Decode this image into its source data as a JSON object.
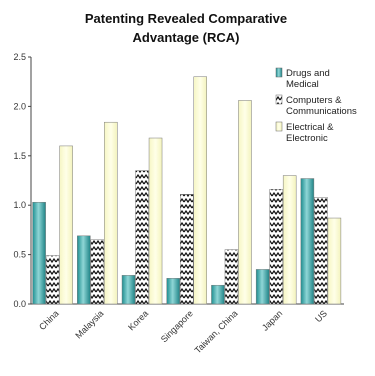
{
  "chart_data": {
    "type": "bar",
    "title_lines": [
      "Patenting Revealed Comparative",
      "Advantage (RCA)"
    ],
    "categories": [
      "China",
      "Malaysia",
      "Korea",
      "Singapore",
      "Taiwan, China",
      "Japan",
      "US"
    ],
    "series": [
      {
        "name_lines": [
          "Drugs and",
          "Medical"
        ],
        "values": [
          1.03,
          0.69,
          0.29,
          0.26,
          0.19,
          0.35,
          1.27
        ],
        "fill": "#3aa8a8",
        "pattern": "gradient-teal"
      },
      {
        "name_lines": [
          "Computers &",
          "Communications"
        ],
        "values": [
          0.49,
          0.65,
          1.35,
          1.11,
          0.55,
          1.16,
          1.08
        ],
        "fill": "#ffffff",
        "pattern": "zigzag-black"
      },
      {
        "name_lines": [
          "Electrical &",
          "Electronic"
        ],
        "values": [
          1.6,
          1.84,
          1.68,
          2.3,
          2.06,
          1.3,
          0.87
        ],
        "fill": "#fafad2",
        "pattern": "solid-cream"
      }
    ],
    "yticks": [
      "0.0",
      "0.5",
      "1.0",
      "1.5",
      "2.0",
      "2.5"
    ],
    "ylim": [
      0,
      2.5
    ],
    "grid": false,
    "legend_position": "right"
  }
}
